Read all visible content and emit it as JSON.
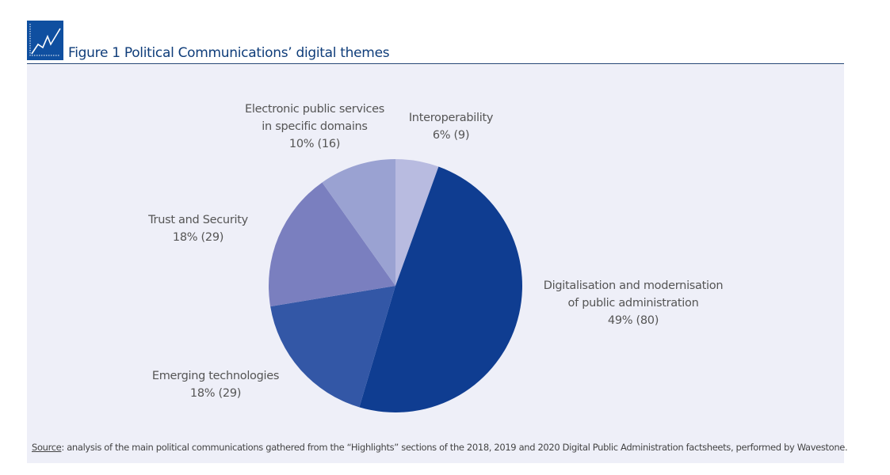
{
  "figure": {
    "number": "Figure 1",
    "title": "Political Communications’ digital themes",
    "icon": "line-chart-icon"
  },
  "chart_data": {
    "type": "pie",
    "title": "Political Communications’ digital themes",
    "slices": [
      {
        "label_lines": [
          "Interoperability"
        ],
        "value_text": "6% (9)",
        "percent": 6,
        "count": 9,
        "color": "#b8bbe0"
      },
      {
        "label_lines": [
          "Digitalisation and modernisation",
          "of public administration"
        ],
        "value_text": "49% (80)",
        "percent": 49,
        "count": 80,
        "color": "#0f3d91"
      },
      {
        "label_lines": [
          "Emerging technologies"
        ],
        "value_text": "18% (29)",
        "percent": 18,
        "count": 29,
        "color": "#3357a6"
      },
      {
        "label_lines": [
          "Trust and Security"
        ],
        "value_text": "18% (29)",
        "percent": 18,
        "count": 29,
        "color": "#7a7fbf"
      },
      {
        "label_lines": [
          "Electronic public services",
          "in specific domains"
        ],
        "value_text": "10% (16)",
        "percent": 10,
        "count": 16,
        "color": "#9aa2d2"
      }
    ],
    "start": "top, clockwise"
  },
  "source": {
    "label": "Source",
    "text": ": analysis of the main political communications gathered from the “Highlights” sections of the 2018, 2019 and 2020 Digital Public Administration factsheets, performed by Wavestone."
  },
  "colors": {
    "accent": "#0f4fa0",
    "panel": "#eeeff8"
  }
}
